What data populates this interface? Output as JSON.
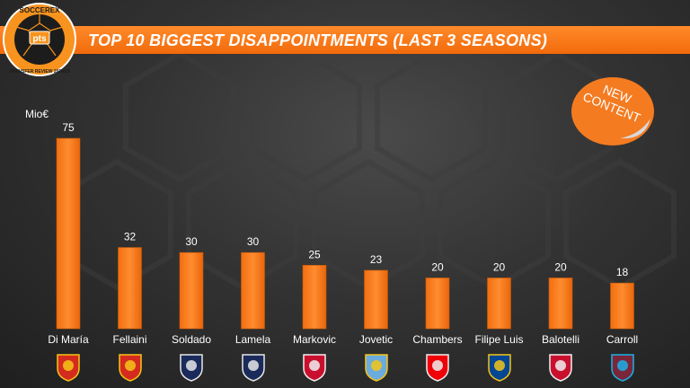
{
  "header": {
    "title": "TOP 10 BIGGEST DISAPPOINTMENTS (LAST 3 SEASONS)",
    "logo_top": "SOCCEREX",
    "logo_center": "pts",
    "logo_bottom": "TRANSFER REVIEW 2014/15"
  },
  "badge": {
    "line1": "NEW",
    "line2": "CONTENT"
  },
  "colors": {
    "accent": "#f47b20",
    "bar": "#f07820",
    "background": "#2e2e2e"
  },
  "chart_data": {
    "type": "bar",
    "title": "TOP 10 BIGGEST DISAPPOINTMENTS (LAST 3 SEASONS)",
    "unit": "Mio€",
    "categories": [
      "Di María",
      "Fellaini",
      "Soldado",
      "Lamela",
      "Markovic",
      "Jovetic",
      "Chambers",
      "Filipe Luis",
      "Balotelli",
      "Carroll"
    ],
    "values": [
      75,
      32,
      30,
      30,
      25,
      23,
      20,
      20,
      20,
      18
    ],
    "ylim": [
      0,
      85
    ],
    "grid": false,
    "club_crests": [
      "man-utd-crest",
      "man-utd-crest",
      "tottenham-crest",
      "tottenham-crest",
      "liverpool-crest",
      "man-city-crest",
      "arsenal-crest",
      "chelsea-crest",
      "liverpool-crest",
      "west-ham-crest"
    ]
  }
}
